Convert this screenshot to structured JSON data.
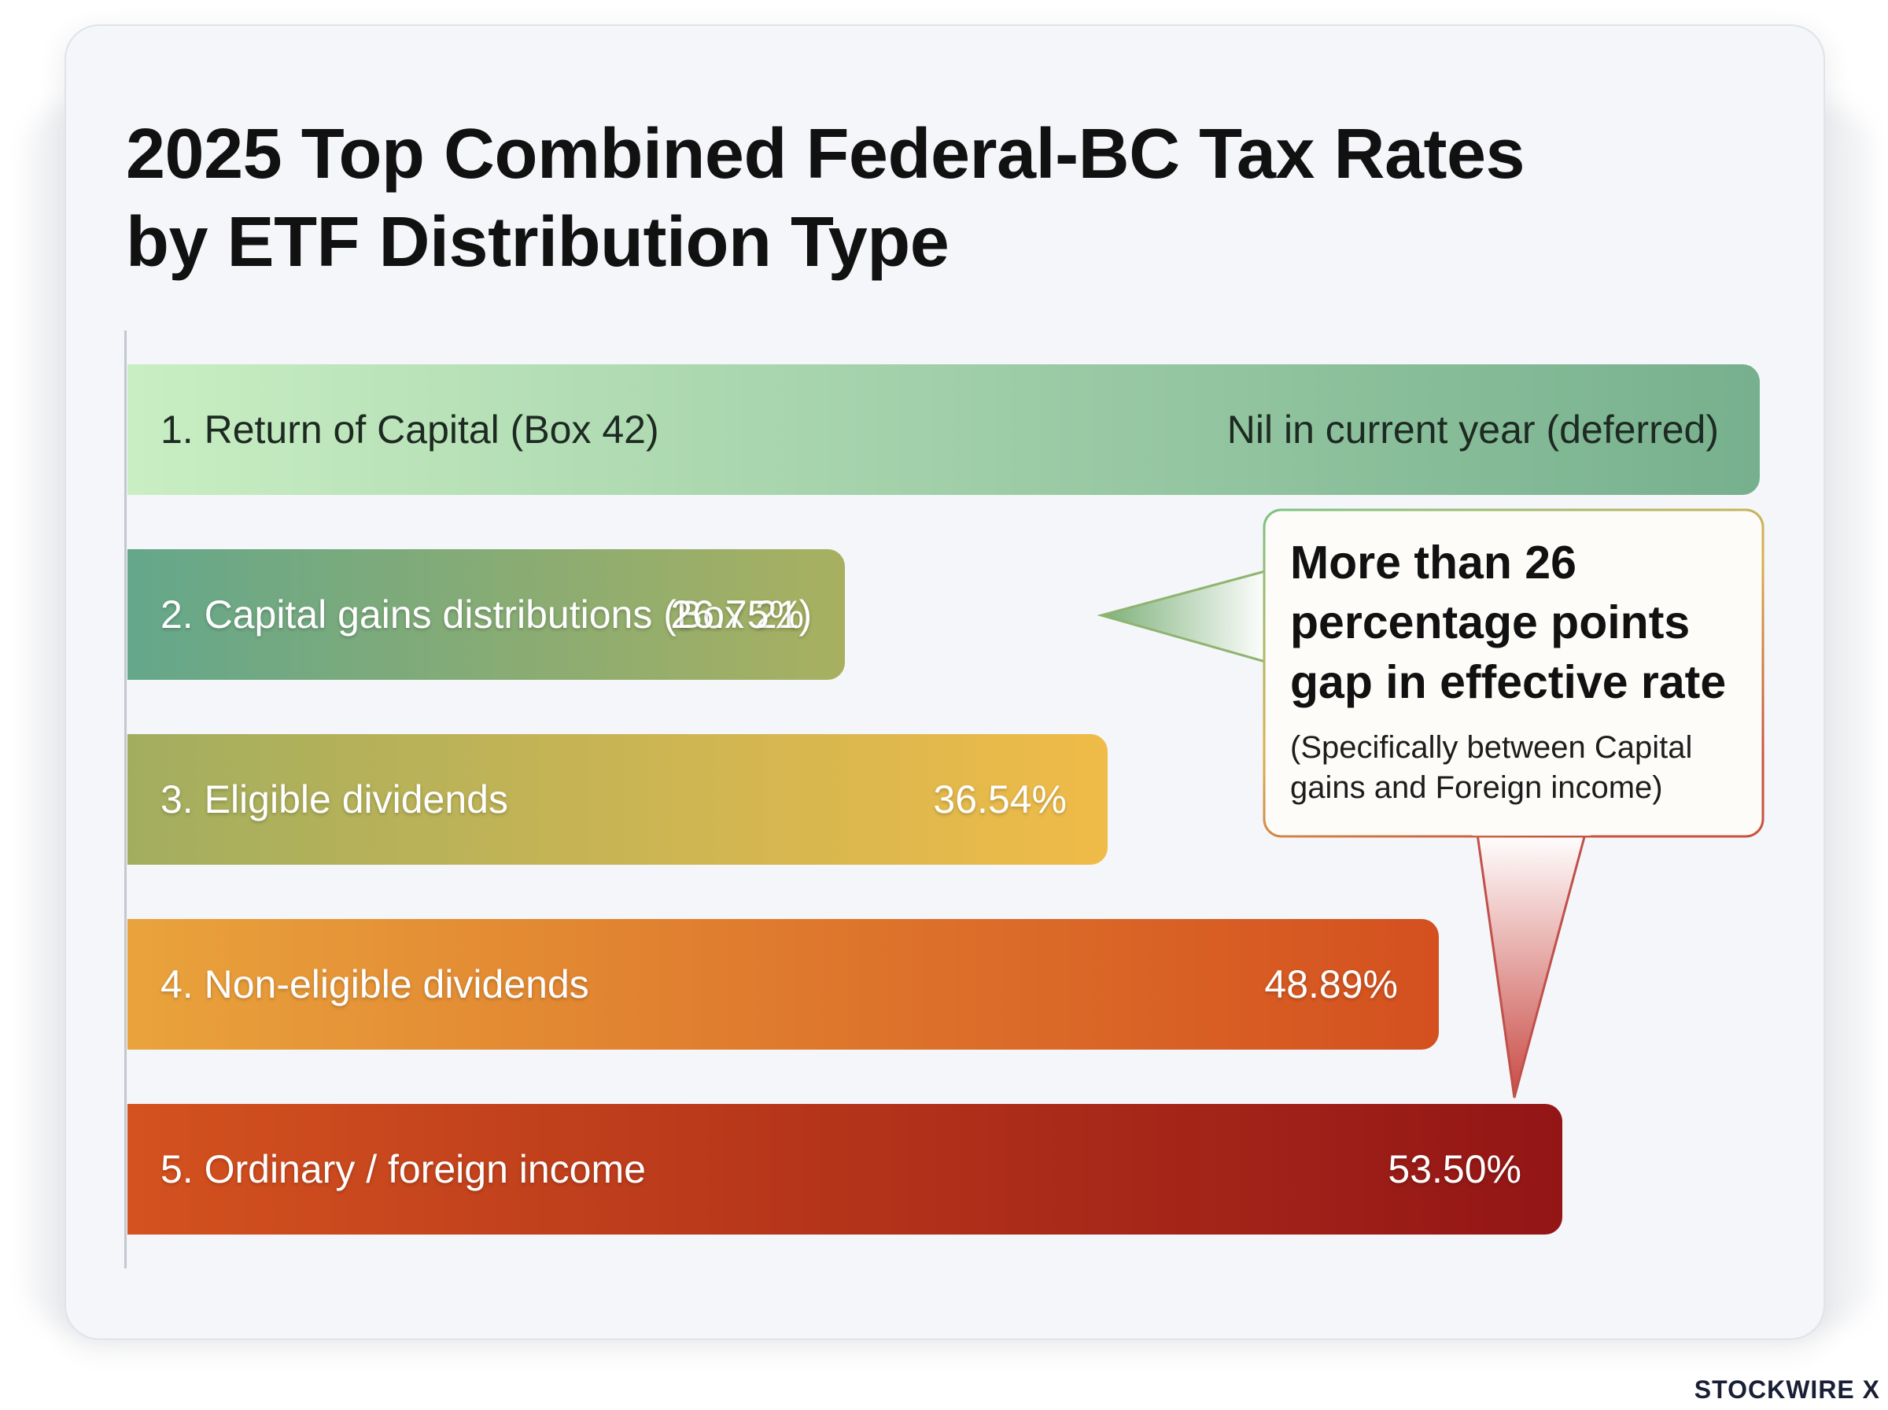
{
  "chart_data": {
    "type": "bar",
    "orientation": "horizontal",
    "title_lines": [
      "2025 Top Combined Federal-BC Tax Rates",
      "by ETF Distribution Type"
    ],
    "categories": [
      "1. Return of Capital (Box 42)",
      "2. Capital gains distributions (Box 21)",
      "3. Eligible dividends",
      "4. Non-eligible dividends",
      "5. Ordinary / foreign income"
    ],
    "values": [
      null,
      26.75,
      36.54,
      48.89,
      53.5
    ],
    "value_labels": [
      "Nil in current year (deferred)",
      "26.75%",
      "36.54%",
      "48.89%",
      "53.50%"
    ],
    "bar_colors": [
      [
        "#c9eec3",
        "#77b08e"
      ],
      [
        "#64a78b",
        "#a8b060"
      ],
      [
        "#a2ae5f",
        "#f0bb48"
      ],
      [
        "#e9a33c",
        "#d4501f"
      ],
      [
        "#d4521f",
        "#931516"
      ]
    ],
    "xlim": [
      0,
      60
    ],
    "grid": false,
    "legend": "none"
  },
  "callout": {
    "headline_lines": [
      "More than 26",
      "percentage points",
      "gap in effective rate"
    ],
    "note_lines": [
      "(Specifically between Capital",
      "gains and Foreign income)"
    ]
  },
  "brand": "STOCKWIRE X"
}
